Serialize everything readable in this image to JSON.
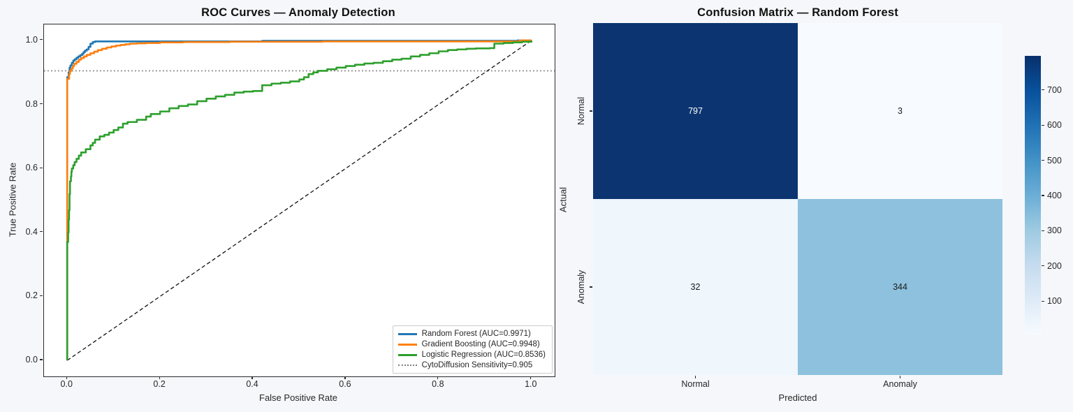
{
  "colors": {
    "figure_bg": "#f5f7fa",
    "plot_bg": "#ffffff",
    "spine": "#2b2b2b",
    "diagonal": "#111111",
    "threshold": "#888888",
    "random_forest": "#1f77b4",
    "gradient_boosting": "#ff7f0e",
    "logistic_regression": "#2ca02c"
  },
  "roc_panel": {
    "title": "ROC Curves — Anomaly Detection",
    "xlabel": "False Positive Rate",
    "ylabel": "True Positive Rate"
  },
  "cm_panel": {
    "title": "Confusion Matrix — Random Forest",
    "xlabel": "Predicted",
    "ylabel": "Actual"
  },
  "chart_data": [
    {
      "type": "line",
      "subtype": "roc",
      "title": "ROC Curves — Anomaly Detection",
      "xlabel": "False Positive Rate",
      "ylabel": "True Positive Rate",
      "xlim": [
        -0.05,
        1.05
      ],
      "ylim": [
        -0.05,
        1.05
      ],
      "xticks": [
        0.0,
        0.2,
        0.4,
        0.6,
        0.8,
        1.0
      ],
      "yticks": [
        0.0,
        0.2,
        0.4,
        0.6,
        0.8,
        1.0
      ],
      "grid": false,
      "legend_position": "lower right",
      "series": [
        {
          "name": "Random Forest (AUC=0.9971)",
          "auc": 0.9971,
          "color": "#1f77b4",
          "points": [
            [
              0,
              0
            ],
            [
              0,
              0.885
            ],
            [
              0.003,
              0.9
            ],
            [
              0.005,
              0.915
            ],
            [
              0.007,
              0.922
            ],
            [
              0.01,
              0.93
            ],
            [
              0.013,
              0.937
            ],
            [
              0.016,
              0.941
            ],
            [
              0.02,
              0.946
            ],
            [
              0.024,
              0.95
            ],
            [
              0.028,
              0.954
            ],
            [
              0.032,
              0.958
            ],
            [
              0.035,
              0.963
            ],
            [
              0.038,
              0.968
            ],
            [
              0.042,
              0.972
            ],
            [
              0.046,
              0.98
            ],
            [
              0.05,
              0.99
            ],
            [
              0.055,
              0.995
            ],
            [
              0.06,
              0.997
            ],
            [
              0.4,
              0.997
            ],
            [
              0.42,
              0.999
            ],
            [
              0.95,
              0.999
            ],
            [
              0.97,
              1.0
            ],
            [
              1,
              1
            ]
          ]
        },
        {
          "name": "Gradient Boosting (AUC=0.9948)",
          "auc": 0.9948,
          "color": "#ff7f0e",
          "points": [
            [
              0,
              0
            ],
            [
              0,
              0.88
            ],
            [
              0.004,
              0.895
            ],
            [
              0.006,
              0.905
            ],
            [
              0.009,
              0.912
            ],
            [
              0.012,
              0.92
            ],
            [
              0.015,
              0.927
            ],
            [
              0.02,
              0.933
            ],
            [
              0.025,
              0.94
            ],
            [
              0.03,
              0.945
            ],
            [
              0.036,
              0.95
            ],
            [
              0.042,
              0.955
            ],
            [
              0.05,
              0.96
            ],
            [
              0.058,
              0.965
            ],
            [
              0.066,
              0.97
            ],
            [
              0.075,
              0.974
            ],
            [
              0.085,
              0.978
            ],
            [
              0.095,
              0.981
            ],
            [
              0.105,
              0.984
            ],
            [
              0.115,
              0.986
            ],
            [
              0.125,
              0.988
            ],
            [
              0.135,
              0.99
            ],
            [
              0.15,
              0.991
            ],
            [
              0.17,
              0.992
            ],
            [
              0.2,
              0.994
            ],
            [
              0.25,
              0.995
            ],
            [
              0.35,
              0.996
            ],
            [
              0.55,
              0.997
            ],
            [
              0.96,
              0.997
            ],
            [
              0.975,
              1.0
            ],
            [
              1,
              1
            ]
          ]
        },
        {
          "name": "Logistic Regression (AUC=0.8536)",
          "auc": 0.8536,
          "color": "#2ca02c",
          "points": [
            [
              0,
              0
            ],
            [
              0,
              0.37
            ],
            [
              0.002,
              0.4
            ],
            [
              0.003,
              0.44
            ],
            [
              0.004,
              0.47
            ],
            [
              0.005,
              0.52
            ],
            [
              0.006,
              0.56
            ],
            [
              0.008,
              0.575
            ],
            [
              0.009,
              0.59
            ],
            [
              0.01,
              0.6
            ],
            [
              0.013,
              0.61
            ],
            [
              0.016,
              0.62
            ],
            [
              0.02,
              0.63
            ],
            [
              0.025,
              0.64
            ],
            [
              0.03,
              0.65
            ],
            [
              0.04,
              0.66
            ],
            [
              0.05,
              0.672
            ],
            [
              0.055,
              0.68
            ],
            [
              0.06,
              0.69
            ],
            [
              0.07,
              0.7
            ],
            [
              0.08,
              0.705
            ],
            [
              0.09,
              0.712
            ],
            [
              0.1,
              0.72
            ],
            [
              0.11,
              0.728
            ],
            [
              0.12,
              0.74
            ],
            [
              0.13,
              0.745
            ],
            [
              0.15,
              0.752
            ],
            [
              0.17,
              0.762
            ],
            [
              0.18,
              0.77
            ],
            [
              0.2,
              0.778
            ],
            [
              0.22,
              0.788
            ],
            [
              0.24,
              0.795
            ],
            [
              0.26,
              0.8
            ],
            [
              0.28,
              0.81
            ],
            [
              0.3,
              0.818
            ],
            [
              0.32,
              0.825
            ],
            [
              0.34,
              0.83
            ],
            [
              0.36,
              0.837
            ],
            [
              0.38,
              0.84
            ],
            [
              0.4,
              0.842
            ],
            [
              0.42,
              0.86
            ],
            [
              0.44,
              0.865
            ],
            [
              0.46,
              0.868
            ],
            [
              0.48,
              0.872
            ],
            [
              0.5,
              0.878
            ],
            [
              0.51,
              0.885
            ],
            [
              0.52,
              0.895
            ],
            [
              0.53,
              0.9
            ],
            [
              0.54,
              0.905
            ],
            [
              0.56,
              0.91
            ],
            [
              0.58,
              0.915
            ],
            [
              0.6,
              0.92
            ],
            [
              0.62,
              0.924
            ],
            [
              0.64,
              0.928
            ],
            [
              0.66,
              0.93
            ],
            [
              0.68,
              0.935
            ],
            [
              0.7,
              0.94
            ],
            [
              0.72,
              0.943
            ],
            [
              0.74,
              0.95
            ],
            [
              0.76,
              0.955
            ],
            [
              0.78,
              0.96
            ],
            [
              0.8,
              0.966
            ],
            [
              0.82,
              0.97
            ],
            [
              0.84,
              0.972
            ],
            [
              0.86,
              0.974
            ],
            [
              0.88,
              0.975
            ],
            [
              0.91,
              0.976
            ],
            [
              0.92,
              0.99
            ],
            [
              0.94,
              0.992
            ],
            [
              0.96,
              0.994
            ],
            [
              0.98,
              0.996
            ],
            [
              1,
              1
            ]
          ]
        }
      ],
      "threshold_line": {
        "label": "CytoDiffusion Sensitivity=0.905",
        "y": 0.905,
        "color": "#888888",
        "style": "dotted"
      },
      "diagonal": {
        "from": [
          0,
          0
        ],
        "to": [
          1,
          1
        ],
        "color": "#111111",
        "style": "dashed"
      }
    },
    {
      "type": "heatmap",
      "subtype": "confusion_matrix",
      "title": "Confusion Matrix — Random Forest",
      "xlabel": "Predicted",
      "ylabel": "Actual",
      "categories": [
        "Normal",
        "Anomaly"
      ],
      "matrix": [
        [
          797,
          3
        ],
        [
          32,
          344
        ]
      ],
      "cell_colors": [
        [
          "#0c3470",
          "#f7fafe"
        ],
        [
          "#eff6fc",
          "#8dc1dd"
        ]
      ],
      "cell_text_colors": [
        [
          "#ffffff",
          "#1a1a1a"
        ],
        [
          "#1a1a1a",
          "#1a1a1a"
        ]
      ],
      "colorbar": {
        "min": 3,
        "max": 797,
        "ticks": [
          100,
          200,
          300,
          400,
          500,
          600,
          700
        ],
        "colormap": "Blues"
      }
    }
  ]
}
